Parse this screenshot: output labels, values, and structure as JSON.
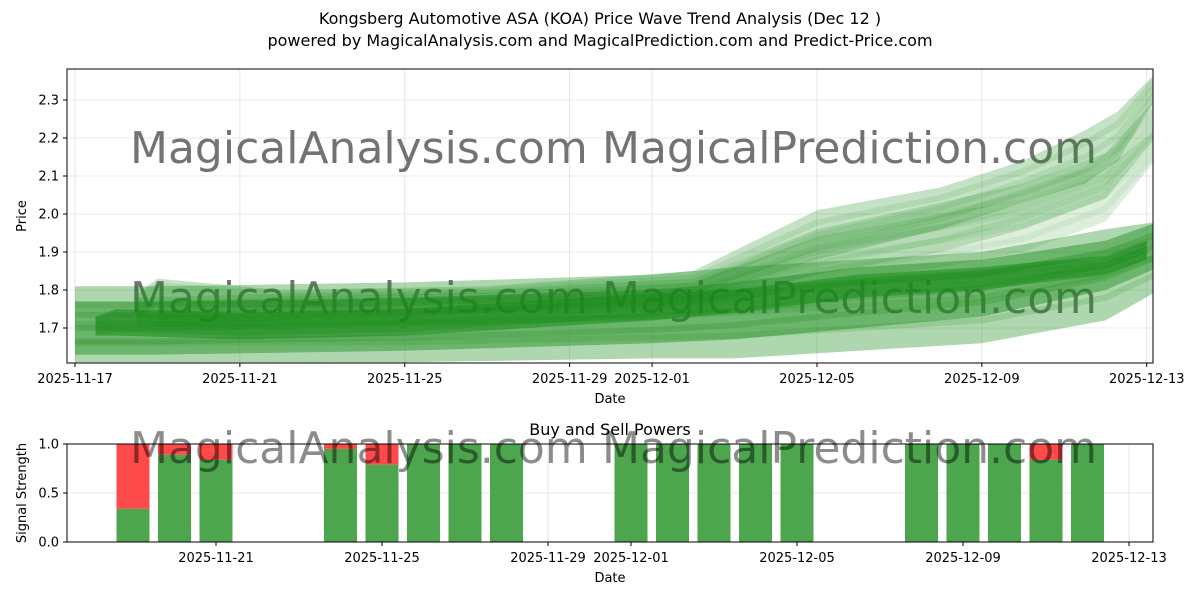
{
  "figure": {
    "title_line1": "Kongsberg Automotive ASA (KOA) Price Wave Trend Analysis (Dec 12 )",
    "title_line2": "powered by MagicalAnalysis.com and MagicalPrediction.com and Predict-Price.com",
    "watermarks": [
      "MagicalAnalysis.com",
      "MagicalPrediction.com"
    ]
  },
  "colors": {
    "band_green": "#1a8c1a",
    "buy_green": "#4da64d",
    "sell_red": "#ff4a4a",
    "grid": "#e0e0e0",
    "watermark": "#d8d8d8"
  },
  "chart_data": [
    {
      "type": "area",
      "title": "",
      "xlabel": "Date",
      "ylabel": "Price",
      "ylim": [
        1.61,
        2.38
      ],
      "xlim": [
        "2025-11-16.8",
        "2025-12-13.2"
      ],
      "grid": true,
      "x_ticks": [
        "2025-11-17",
        "2025-11-21",
        "2025-11-25",
        "2025-11-29",
        "2025-12-01",
        "2025-12-05",
        "2025-12-09",
        "2025-12-13"
      ],
      "y_ticks": [
        1.7,
        1.8,
        1.9,
        2.0,
        2.1,
        2.2,
        2.3
      ],
      "description": "Overlapping translucent green prediction bands (price wave trends)",
      "bands": [
        {
          "name": "wide-lower",
          "opacity": 0.35,
          "x": [
            0,
            2,
            8,
            14,
            16,
            19,
            22,
            25,
            26.3
          ],
          "upper": [
            1.81,
            1.81,
            1.82,
            1.84,
            1.86,
            1.88,
            1.9,
            1.96,
            1.98
          ],
          "lower": [
            1.61,
            1.61,
            1.61,
            1.62,
            1.62,
            1.64,
            1.66,
            1.72,
            1.8
          ]
        },
        {
          "name": "mid-lower",
          "opacity": 0.45,
          "x": [
            0,
            2,
            8,
            14,
            16,
            19,
            22,
            25,
            26.3
          ],
          "upper": [
            1.77,
            1.77,
            1.78,
            1.8,
            1.82,
            1.86,
            1.88,
            1.93,
            1.98
          ],
          "lower": [
            1.63,
            1.63,
            1.64,
            1.66,
            1.67,
            1.7,
            1.73,
            1.8,
            1.86
          ]
        },
        {
          "name": "core",
          "opacity": 0.55,
          "x": [
            0.5,
            1,
            4,
            8,
            14,
            16,
            19,
            22,
            25,
            26
          ],
          "upper": [
            1.73,
            1.75,
            1.74,
            1.75,
            1.79,
            1.8,
            1.84,
            1.86,
            1.89,
            1.93
          ],
          "lower": [
            1.68,
            1.68,
            1.67,
            1.68,
            1.72,
            1.74,
            1.78,
            1.8,
            1.84,
            1.88
          ]
        },
        {
          "name": "upper-wave-1",
          "opacity": 0.25,
          "x": [
            1.5,
            2,
            5,
            10,
            15,
            18,
            21,
            23,
            24.5,
            25.3,
            26.2
          ],
          "upper": [
            1.79,
            1.83,
            1.8,
            1.81,
            1.85,
            2.01,
            2.07,
            2.14,
            2.22,
            2.27,
            2.37
          ],
          "lower": [
            1.72,
            1.76,
            1.75,
            1.76,
            1.78,
            1.88,
            1.96,
            2.03,
            2.08,
            2.14,
            2.3
          ]
        },
        {
          "name": "upper-wave-2",
          "opacity": 0.2,
          "x": [
            1.5,
            5,
            10,
            15,
            18,
            21,
            23,
            25,
            26.2
          ],
          "upper": [
            1.78,
            1.79,
            1.8,
            1.83,
            1.96,
            2.03,
            2.08,
            2.16,
            2.3
          ],
          "lower": [
            1.7,
            1.72,
            1.74,
            1.76,
            1.84,
            1.9,
            1.96,
            2.04,
            2.2
          ]
        },
        {
          "name": "upper-wave-3",
          "opacity": 0.15,
          "x": [
            2,
            6,
            11,
            15,
            18,
            21,
            23,
            25,
            26.2
          ],
          "upper": [
            1.77,
            1.77,
            1.79,
            1.82,
            1.94,
            2.0,
            2.04,
            2.12,
            2.22
          ],
          "lower": [
            1.69,
            1.7,
            1.72,
            1.74,
            1.82,
            1.86,
            1.9,
            1.98,
            2.14
          ]
        }
      ]
    },
    {
      "type": "bar",
      "title": "Buy and Sell Powers",
      "xlabel": "Date",
      "ylabel": "Signal Strength",
      "ylim": [
        0,
        1
      ],
      "y_ticks": [
        0.0,
        0.5,
        1.0
      ],
      "x_ticks": [
        "2025-11-21",
        "2025-11-25",
        "2025-11-29",
        "2025-12-01",
        "2025-12-05",
        "2025-12-09",
        "2025-12-13"
      ],
      "categories": [
        "2025-11-19",
        "2025-11-20",
        "2025-11-21",
        "2025-11-24",
        "2025-11-25",
        "2025-11-26",
        "2025-11-27",
        "2025-11-28",
        "2025-12-01",
        "2025-12-02",
        "2025-12-03",
        "2025-12-04",
        "2025-12-05",
        "2025-12-08",
        "2025-12-09",
        "2025-12-10",
        "2025-12-11",
        "2025-12-12"
      ],
      "series": [
        {
          "name": "Buy",
          "color": "#4da64d",
          "values": [
            0.34,
            0.89,
            0.84,
            0.95,
            0.79,
            1.0,
            1.0,
            1.0,
            1.0,
            1.0,
            1.0,
            1.0,
            1.0,
            1.0,
            1.0,
            1.0,
            0.84,
            1.0
          ]
        },
        {
          "name": "Sell",
          "color": "#ff4a4a",
          "values": [
            0.66,
            0.11,
            0.16,
            0.05,
            0.21,
            0.0,
            0.0,
            0.0,
            0.0,
            0.0,
            0.0,
            0.0,
            0.0,
            0.0,
            0.0,
            0.0,
            0.16,
            0.0
          ]
        }
      ]
    }
  ]
}
